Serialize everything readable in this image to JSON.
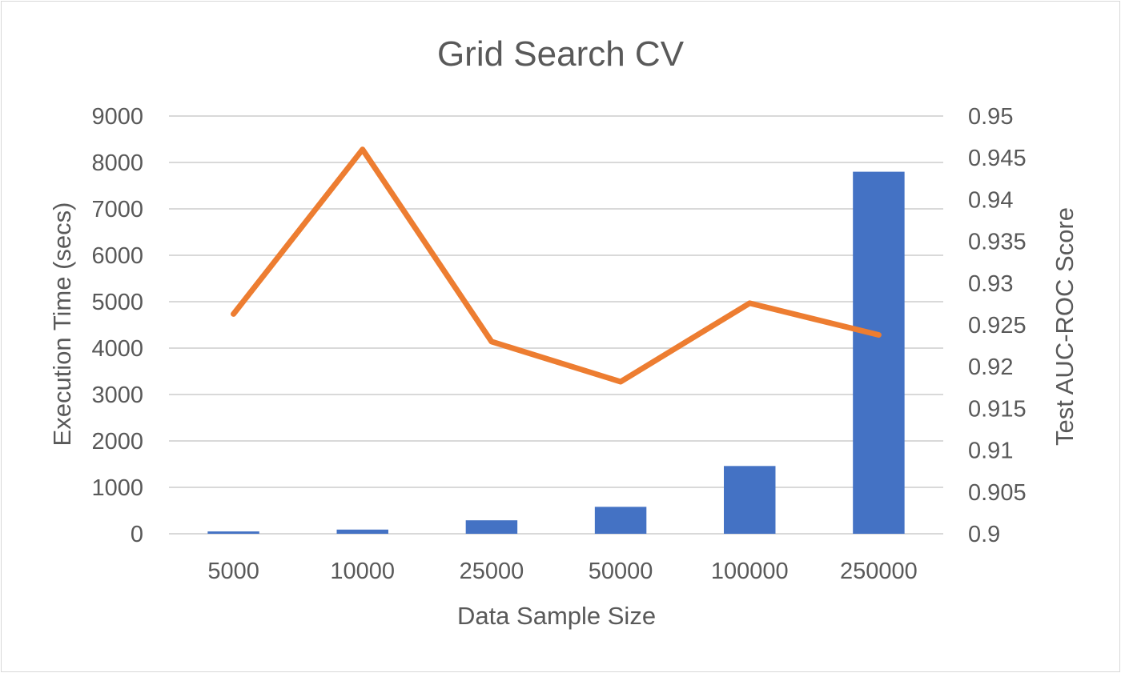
{
  "chart_data": {
    "type": "bar",
    "title": "Grid Search CV",
    "xlabel": "Data Sample Size",
    "ylabel": "Execution Time (secs)",
    "y2label": "Test AUC-ROC Score",
    "categories": [
      "5000",
      "10000",
      "25000",
      "50000",
      "100000",
      "250000"
    ],
    "series": [
      {
        "type": "bar",
        "axis": "left",
        "color": "#4472C4",
        "values": [
          50,
          90,
          290,
          580,
          1460,
          7800
        ]
      },
      {
        "type": "line",
        "axis": "right",
        "color": "#ED7D31",
        "values": [
          0.9263,
          0.946,
          0.923,
          0.9182,
          0.9276,
          0.9238
        ]
      }
    ],
    "ylim": [
      0,
      9000
    ],
    "y_ticks": [
      "0",
      "1000",
      "2000",
      "3000",
      "4000",
      "5000",
      "6000",
      "7000",
      "8000",
      "9000"
    ],
    "y2lim": [
      0.9,
      0.95
    ],
    "y2_ticks": [
      "0.9",
      "0.905",
      "0.91",
      "0.915",
      "0.92",
      "0.925",
      "0.93",
      "0.935",
      "0.94",
      "0.945",
      "0.95"
    ],
    "grid": true,
    "legend": "none"
  }
}
